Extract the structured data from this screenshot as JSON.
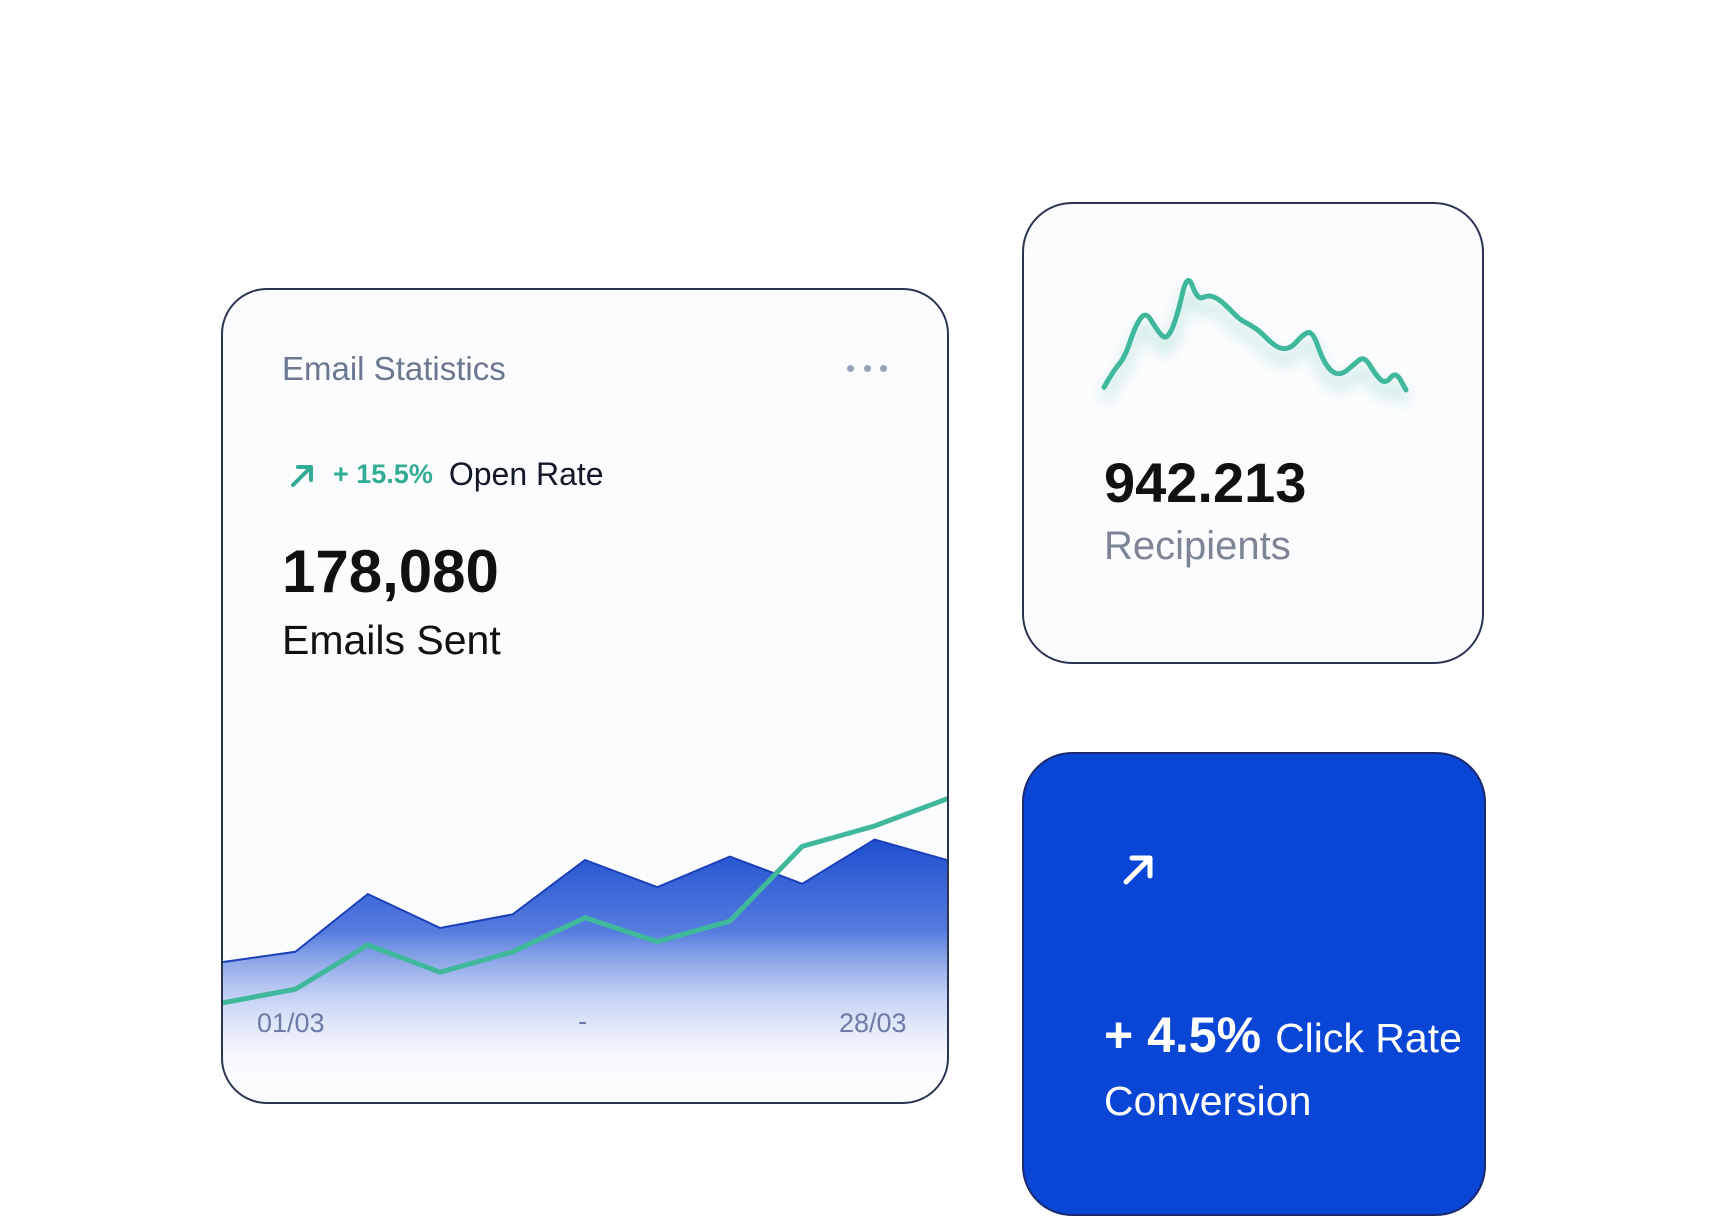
{
  "email_card": {
    "title": "Email Statistics",
    "open_rate_change": "+ 15.5%",
    "open_rate_label": "Open Rate",
    "emails_sent_value": "178,080",
    "emails_sent_label": "Emails Sent",
    "date_start": "01/03",
    "date_separator": "-",
    "date_end": "28/03",
    "more_icon": "more-horizontal-icon",
    "arrow_icon": "arrow-up-right-icon"
  },
  "recipients_card": {
    "value": "942.213",
    "label": "Recipients"
  },
  "click_card": {
    "arrow_icon": "arrow-up-right-icon",
    "change": "+ 4.5%",
    "label": "Click Rate",
    "sublabel": "Conversion"
  },
  "colors": {
    "accent_blue": "#0a46d6",
    "teal": "#32ad95",
    "text_dark": "#111111",
    "text_muted": "#6b7790"
  },
  "chart_data": [
    {
      "type": "area",
      "x": [
        0,
        1,
        2,
        3,
        4,
        5,
        6,
        7,
        8,
        9,
        10
      ],
      "series": [
        {
          "values": [
            20,
            23,
            40,
            30,
            34,
            50,
            42,
            51,
            43,
            56,
            50
          ]
        },
        {
          "values": [
            8,
            12,
            25,
            17,
            23,
            33,
            26,
            32,
            54,
            60,
            68
          ]
        }
      ],
      "ylim": [
        0,
        100
      ],
      "grid": false
    },
    {
      "type": "line",
      "x": [
        0,
        1,
        2,
        3,
        4,
        5,
        6,
        7,
        8,
        9,
        10,
        11,
        12,
        13,
        14,
        15,
        16,
        17,
        18,
        19,
        20,
        21,
        22,
        23,
        24,
        25,
        26,
        27,
        28,
        29
      ],
      "series": [
        {
          "values": [
            2,
            15,
            24,
            47,
            58,
            45,
            36,
            53,
            87,
            66,
            70,
            67,
            60,
            52,
            48,
            43,
            35,
            30,
            31,
            40,
            44,
            22,
            12,
            12,
            19,
            25,
            12,
            4,
            14,
            0
          ]
        }
      ],
      "ylim": [
        0,
        100
      ],
      "grid": false
    }
  ]
}
